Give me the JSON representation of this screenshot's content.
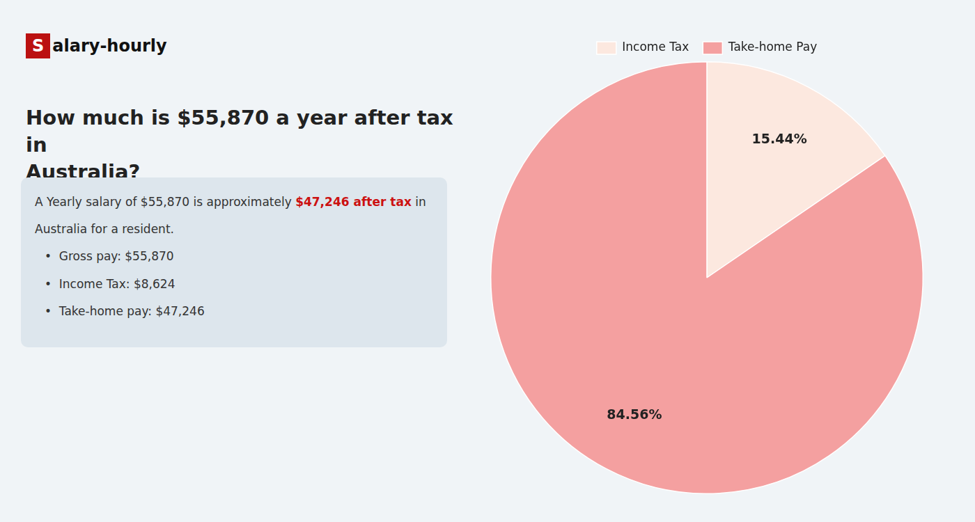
{
  "chart_data": {
    "type": "pie",
    "title": "How much is $55,870 a year after tax in\nAustralia?",
    "categories": [
      "Income Tax",
      "Take-home Pay"
    ],
    "values": [
      15.44,
      84.56
    ],
    "value_labels": [
      "15.44%",
      "84.56%"
    ],
    "colors": [
      "#fce8df",
      "#f4a0a0"
    ],
    "data_labels": true,
    "legend": "top",
    "annotations": [
      [
        {
          "text": "S"
        },
        {
          "text": "alary-hourly"
        }
      ],
      [
        {
          "text": "A Yearly salary of $55,870 is approximately "
        },
        {
          "text": "$47,246 after tax",
          "color": "#cc1111"
        },
        {
          "text": " in"
        }
      ],
      [
        {
          "text": "Australia for a resident."
        }
      ],
      [
        {
          "text": "•  Gross pay: $55,870"
        }
      ],
      [
        {
          "text": "•  Income Tax: $8,624"
        }
      ],
      [
        {
          "text": "•  Take-home pay: $47,246"
        }
      ]
    ]
  }
}
